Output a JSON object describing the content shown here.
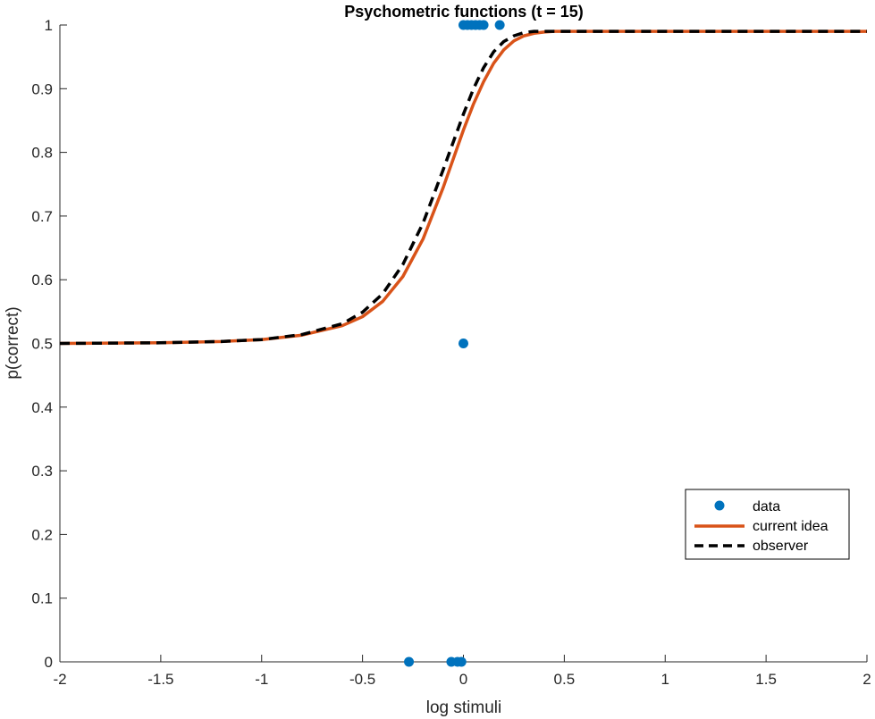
{
  "chart_data": {
    "type": "line",
    "title": "Psychometric functions (t = 15)",
    "xlabel": "log stimuli",
    "ylabel": "p(correct)",
    "xlim": [
      -2,
      2
    ],
    "ylim": [
      0,
      1
    ],
    "xticks": [
      -2,
      -1.5,
      -1,
      -0.5,
      0,
      0.5,
      1,
      1.5,
      2
    ],
    "xtick_labels": [
      "-2",
      "-1.5",
      "-1",
      "-0.5",
      "0",
      "0.5",
      "1",
      "1.5",
      "2"
    ],
    "yticks": [
      0,
      0.1,
      0.2,
      0.3,
      0.4,
      0.5,
      0.6,
      0.7,
      0.8,
      0.9,
      1
    ],
    "ytick_labels": [
      "0",
      "0.1",
      "0.2",
      "0.3",
      "0.4",
      "0.5",
      "0.6",
      "0.7",
      "0.8",
      "0.9",
      "1"
    ],
    "grid": false,
    "legend_position": "lower-right",
    "series": [
      {
        "name": "data",
        "style": "markers",
        "color": "#0072BD",
        "points": [
          {
            "x": -0.27,
            "y": 0
          },
          {
            "x": -0.06,
            "y": 0
          },
          {
            "x": -0.03,
            "y": 0
          },
          {
            "x": -0.01,
            "y": 0
          },
          {
            "x": 0.0,
            "y": 0.5
          },
          {
            "x": 0.0,
            "y": 1
          },
          {
            "x": 0.02,
            "y": 1
          },
          {
            "x": 0.04,
            "y": 1
          },
          {
            "x": 0.06,
            "y": 1
          },
          {
            "x": 0.08,
            "y": 1
          },
          {
            "x": 0.1,
            "y": 1
          },
          {
            "x": 0.18,
            "y": 1
          }
        ]
      },
      {
        "name": "current idea",
        "style": "solid",
        "color": "#D95319",
        "x": [
          -2,
          -1.5,
          -1.2,
          -1,
          -0.8,
          -0.6,
          -0.5,
          -0.4,
          -0.3,
          -0.2,
          -0.1,
          0,
          0.05,
          0.1,
          0.15,
          0.2,
          0.25,
          0.3,
          0.35,
          0.4,
          0.45,
          0.5,
          1,
          1.5,
          2
        ],
        "y": [
          0.5,
          0.501,
          0.503,
          0.506,
          0.513,
          0.528,
          0.542,
          0.566,
          0.605,
          0.664,
          0.745,
          0.835,
          0.876,
          0.911,
          0.94,
          0.961,
          0.975,
          0.983,
          0.987,
          0.989,
          0.99,
          0.99,
          0.99,
          0.99,
          0.99
        ]
      },
      {
        "name": "observer",
        "style": "dashed",
        "color": "#000000",
        "x": [
          -2,
          -1.5,
          -1.2,
          -1,
          -0.8,
          -0.6,
          -0.5,
          -0.4,
          -0.3,
          -0.2,
          -0.1,
          0,
          0.05,
          0.1,
          0.15,
          0.2,
          0.25,
          0.3,
          0.35,
          0.4,
          0.45,
          0.5,
          1,
          1.5,
          2
        ],
        "y": [
          0.5,
          0.501,
          0.503,
          0.506,
          0.514,
          0.531,
          0.549,
          0.578,
          0.624,
          0.689,
          0.773,
          0.86,
          0.9,
          0.933,
          0.958,
          0.974,
          0.983,
          0.988,
          0.99,
          0.99,
          0.99,
          0.99,
          0.99,
          0.99,
          0.99
        ]
      }
    ]
  }
}
